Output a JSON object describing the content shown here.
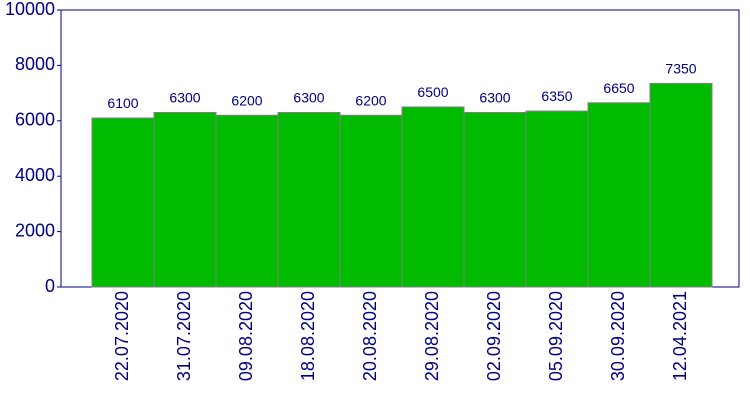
{
  "chart_data": {
    "type": "bar",
    "categories": [
      "22.07.2020",
      "31.07.2020",
      "09.08.2020",
      "18.08.2020",
      "20.08.2020",
      "29.08.2020",
      "02.09.2020",
      "05.09.2020",
      "30.09.2020",
      "12.04.2021"
    ],
    "values": [
      6100,
      6300,
      6200,
      6300,
      6200,
      6500,
      6300,
      6350,
      6650,
      7350
    ],
    "color": "#00bb00",
    "ylim": [
      0,
      10000
    ],
    "yticks": [
      0,
      2000,
      4000,
      6000,
      8000,
      10000
    ],
    "value_labels_shown": true
  }
}
